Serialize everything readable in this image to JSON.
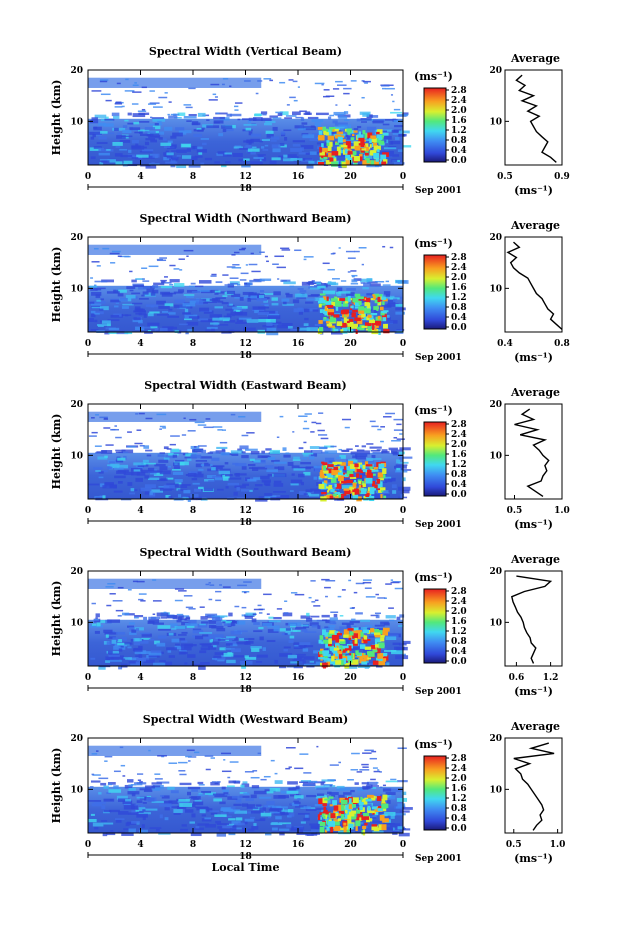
{
  "chart_data": [
    {
      "type": "heatmap",
      "title": "Spectral Width (Vertical Beam)",
      "ylabel": "Height (km)",
      "yticks": [
        "20",
        "10"
      ],
      "xticks": [
        "0",
        "4",
        "8",
        "12",
        "16",
        "20",
        "0"
      ],
      "xrange": [
        0,
        24
      ],
      "yrange": [
        1.5,
        20
      ],
      "day_label": "18",
      "date_label": "Sep 2001",
      "colorbar_unit": "(ms⁻¹)",
      "colorbar_ticks": [
        "2.8",
        "2.4",
        "2.0",
        "1.6",
        "1.2",
        "0.8",
        "0.4",
        "0.0"
      ],
      "profile": {
        "title": "Average",
        "xlabel": "(ms⁻¹)",
        "xticks": [
          "0.5",
          "0.9"
        ],
        "xlim": [
          0.5,
          0.9
        ],
        "yticks": [
          "20",
          "10"
        ],
        "height_km": [
          2,
          3,
          4,
          5,
          6,
          7,
          8,
          9,
          10,
          11,
          12,
          13,
          14,
          15,
          16,
          17,
          18,
          19
        ],
        "width_ms": [
          0.86,
          0.82,
          0.76,
          0.78,
          0.8,
          0.76,
          0.72,
          0.7,
          0.68,
          0.74,
          0.66,
          0.72,
          0.62,
          0.7,
          0.6,
          0.64,
          0.58,
          0.62
        ]
      }
    },
    {
      "type": "heatmap",
      "title": "Spectral Width (Northward Beam)",
      "ylabel": "Height (km)",
      "yticks": [
        "20",
        "10"
      ],
      "xticks": [
        "0",
        "4",
        "8",
        "12",
        "16",
        "20",
        "0"
      ],
      "xrange": [
        0,
        24
      ],
      "yrange": [
        1.5,
        20
      ],
      "day_label": "18",
      "date_label": "Sep 2001",
      "colorbar_unit": "(ms⁻¹)",
      "colorbar_ticks": [
        "2.8",
        "2.4",
        "2.0",
        "1.6",
        "1.2",
        "0.8",
        "0.4",
        "0.0"
      ],
      "profile": {
        "title": "Average",
        "xlabel": "(ms⁻¹)",
        "xticks": [
          "0.4",
          "0.8"
        ],
        "xlim": [
          0.4,
          0.8
        ],
        "yticks": [
          "20",
          "10"
        ],
        "height_km": [
          2,
          3,
          4,
          5,
          6,
          7,
          8,
          9,
          10,
          11,
          12,
          13,
          14,
          15,
          16,
          17,
          18,
          19
        ],
        "width_ms": [
          0.8,
          0.76,
          0.72,
          0.74,
          0.7,
          0.68,
          0.66,
          0.62,
          0.6,
          0.58,
          0.56,
          0.5,
          0.46,
          0.44,
          0.48,
          0.42,
          0.5,
          0.46
        ]
      }
    },
    {
      "type": "heatmap",
      "title": "Spectral Width (Eastward Beam)",
      "ylabel": "Height (km)",
      "yticks": [
        "20",
        "10"
      ],
      "xticks": [
        "0",
        "4",
        "8",
        "12",
        "16",
        "20",
        "0"
      ],
      "xrange": [
        0,
        24
      ],
      "yrange": [
        1.5,
        20
      ],
      "day_label": "18",
      "date_label": "Sep 2001",
      "colorbar_unit": "(ms⁻¹)",
      "colorbar_ticks": [
        "2.8",
        "2.4",
        "2.0",
        "1.6",
        "1.2",
        "0.8",
        "0.4",
        "0.0"
      ],
      "profile": {
        "title": "Average",
        "xlabel": "(ms⁻¹)",
        "xticks": [
          "0.5",
          "1.0"
        ],
        "xlim": [
          0.4,
          1.0
        ],
        "yticks": [
          "20",
          "10"
        ],
        "height_km": [
          2,
          3,
          4,
          5,
          6,
          7,
          8,
          9,
          10,
          11,
          12,
          13,
          14,
          15,
          16,
          17,
          18,
          19
        ],
        "width_ms": [
          0.8,
          0.72,
          0.64,
          0.78,
          0.8,
          0.84,
          0.82,
          0.86,
          0.8,
          0.76,
          0.7,
          0.82,
          0.56,
          0.74,
          0.5,
          0.7,
          0.58,
          0.66
        ]
      }
    },
    {
      "type": "heatmap",
      "title": "Spectral Width (Southward Beam)",
      "ylabel": "Height (km)",
      "yticks": [
        "20",
        "10"
      ],
      "xticks": [
        "0",
        "4",
        "8",
        "12",
        "16",
        "20",
        "0"
      ],
      "xrange": [
        0,
        24
      ],
      "yrange": [
        1.5,
        20
      ],
      "day_label": "18",
      "date_label": "Sep 2001",
      "colorbar_unit": "(ms⁻¹)",
      "colorbar_ticks": [
        "2.8",
        "2.4",
        "2.0",
        "1.6",
        "1.2",
        "0.8",
        "0.4",
        "0.0"
      ],
      "profile": {
        "title": "Average",
        "xlabel": "(ms⁻¹)",
        "xticks": [
          "0.6",
          "1.2"
        ],
        "xlim": [
          0.4,
          1.4
        ],
        "yticks": [
          "20",
          "10"
        ],
        "height_km": [
          2,
          3,
          4,
          5,
          6,
          7,
          8,
          9,
          10,
          11,
          12,
          13,
          14,
          15,
          16,
          17,
          18,
          19
        ],
        "width_ms": [
          0.9,
          0.86,
          0.9,
          0.94,
          0.86,
          0.84,
          0.78,
          0.74,
          0.72,
          0.68,
          0.62,
          0.58,
          0.54,
          0.52,
          0.74,
          1.1,
          1.2,
          0.6
        ]
      }
    },
    {
      "type": "heatmap",
      "title": "Spectral Width (Westward Beam)",
      "ylabel": "Height (km)",
      "yticks": [
        "20",
        "10"
      ],
      "xticks": [
        "0",
        "4",
        "8",
        "12",
        "16",
        "20",
        "0"
      ],
      "xrange": [
        0,
        24
      ],
      "yrange": [
        1.5,
        20
      ],
      "day_label": "18",
      "date_label": "Sep 2001",
      "xlabel": "Local Time",
      "colorbar_unit": "(ms⁻¹)",
      "colorbar_ticks": [
        "2.8",
        "2.4",
        "2.0",
        "1.6",
        "1.2",
        "0.8",
        "0.4",
        "0.0"
      ],
      "profile": {
        "title": "Average",
        "xlabel": "(ms⁻¹)",
        "xticks": [
          "0.5",
          "1.0"
        ],
        "xlim": [
          0.4,
          1.05
        ],
        "yticks": [
          "20",
          "10"
        ],
        "height_km": [
          2,
          3,
          4,
          5,
          6,
          7,
          8,
          9,
          10,
          11,
          12,
          13,
          14,
          15,
          16,
          17,
          18,
          19
        ],
        "width_ms": [
          0.72,
          0.76,
          0.82,
          0.8,
          0.84,
          0.82,
          0.78,
          0.74,
          0.7,
          0.66,
          0.6,
          0.58,
          0.52,
          0.68,
          0.5,
          0.96,
          0.7,
          0.9
        ]
      }
    }
  ]
}
